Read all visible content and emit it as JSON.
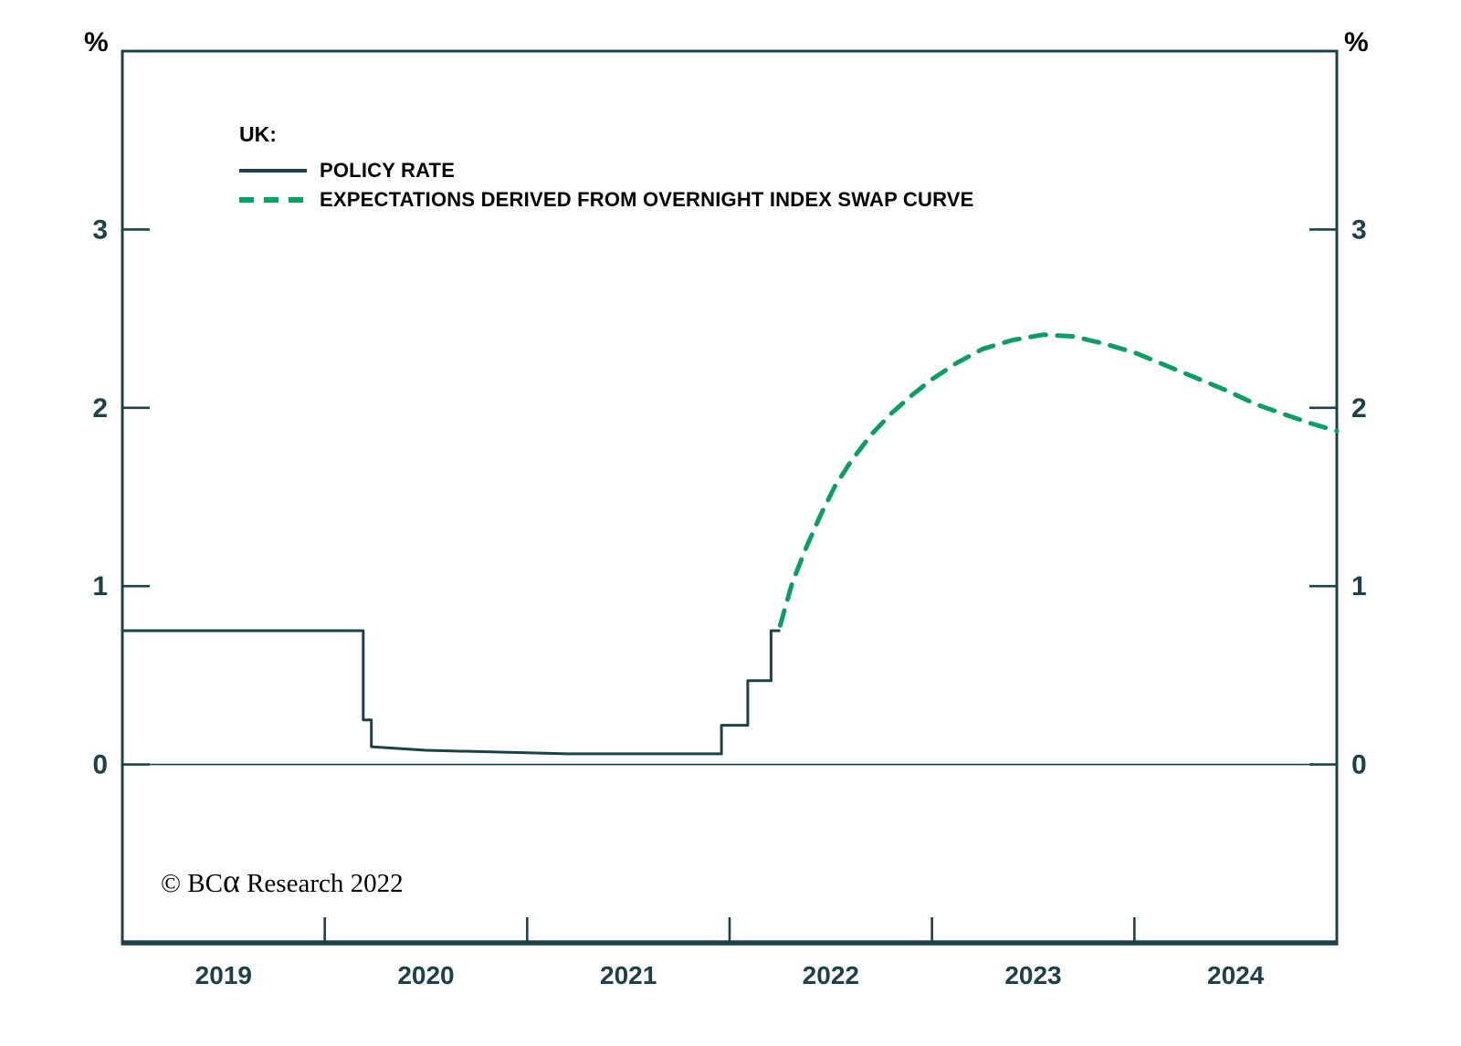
{
  "legend": {
    "title": "UK:",
    "items": [
      {
        "label": "POLICY RATE",
        "style": "solid",
        "color": "#1d4049"
      },
      {
        "label": "EXPECTATIONS DERIVED FROM OVERNIGHT INDEX SWAP CURVE",
        "style": "dashed",
        "color": "#0b9e63"
      }
    ]
  },
  "footer": {
    "copyright_prefix": "© BC",
    "copyright_alpha": "α",
    "copyright_suffix": " Research 2022"
  },
  "chart_data": {
    "type": "line",
    "title": "",
    "unit": "%",
    "xlabel": "",
    "ylabel": "%",
    "xlim": [
      2019,
      2025
    ],
    "ylim": [
      -1,
      4
    ],
    "grid": false,
    "zero_line": true,
    "legend_position": "top-left-inside",
    "axis_color": "#1d4049",
    "y_ticks": [
      0,
      1,
      2,
      3
    ],
    "x_ticks": [
      2020,
      2021,
      2022,
      2023,
      2024
    ],
    "x_labels": [
      {
        "text": "2019",
        "pos": 2019.5
      },
      {
        "text": "2020",
        "pos": 2020.5
      },
      {
        "text": "2021",
        "pos": 2021.5
      },
      {
        "text": "2022",
        "pos": 2022.5
      },
      {
        "text": "2023",
        "pos": 2023.5
      },
      {
        "text": "2024",
        "pos": 2024.5
      }
    ],
    "series": [
      {
        "name": "POLICY RATE",
        "key": "policy-rate-line",
        "style": "solid",
        "color": "#1d4049",
        "points": [
          [
            2019.0,
            0.75
          ],
          [
            2020.19,
            0.75
          ],
          [
            2020.19,
            0.25
          ],
          [
            2020.23,
            0.25
          ],
          [
            2020.23,
            0.1
          ],
          [
            2020.5,
            0.08
          ],
          [
            2021.2,
            0.06
          ],
          [
            2021.96,
            0.06
          ],
          [
            2021.96,
            0.22
          ],
          [
            2022.09,
            0.22
          ],
          [
            2022.09,
            0.47
          ],
          [
            2022.205,
            0.47
          ],
          [
            2022.205,
            0.75
          ],
          [
            2022.25,
            0.75
          ]
        ]
      },
      {
        "name": "EXPECTATIONS DERIVED FROM OVERNIGHT INDEX SWAP CURVE",
        "key": "expectations-line",
        "style": "dashed",
        "color": "#0b9e63",
        "points": [
          [
            2022.25,
            0.78
          ],
          [
            2022.31,
            1.02
          ],
          [
            2022.38,
            1.22
          ],
          [
            2022.45,
            1.4
          ],
          [
            2022.52,
            1.56
          ],
          [
            2022.6,
            1.7
          ],
          [
            2022.7,
            1.85
          ],
          [
            2022.8,
            1.97
          ],
          [
            2022.9,
            2.07
          ],
          [
            2023.0,
            2.16
          ],
          [
            2023.12,
            2.25
          ],
          [
            2023.25,
            2.33
          ],
          [
            2023.4,
            2.38
          ],
          [
            2023.55,
            2.41
          ],
          [
            2023.7,
            2.4
          ],
          [
            2023.85,
            2.36
          ],
          [
            2024.0,
            2.31
          ],
          [
            2024.15,
            2.24
          ],
          [
            2024.3,
            2.17
          ],
          [
            2024.45,
            2.1
          ],
          [
            2024.6,
            2.02
          ],
          [
            2024.75,
            1.96
          ],
          [
            2024.88,
            1.91
          ],
          [
            2025.0,
            1.87
          ]
        ]
      }
    ]
  }
}
